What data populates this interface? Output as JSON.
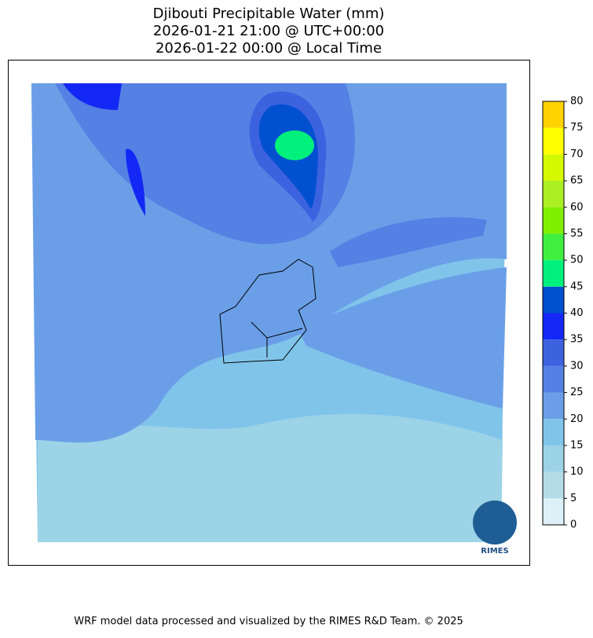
{
  "title": [
    "Djibouti Precipitable Water (mm)",
    "2026-01-21 21:00 @ UTC+00:00",
    "2026-01-22 00:00 @ Local Time"
  ],
  "colorbar": {
    "lim": [
      0,
      80
    ],
    "ticks": [
      0,
      5,
      10,
      15,
      20,
      25,
      30,
      35,
      40,
      45,
      50,
      55,
      60,
      65,
      70,
      75,
      80
    ],
    "colors": [
      "#dcf0f8",
      "#b4dce8",
      "#9dd3e7",
      "#80c4ea",
      "#6a9fe8",
      "#5580e4",
      "#3d62df",
      "#1428f5",
      "#0050d0",
      "#00f07c",
      "#40f040",
      "#80f000",
      "#aaf024",
      "#d4f800",
      "#ffff00",
      "#ffd200"
    ]
  },
  "logo_text": "RIMES",
  "footer": "WRF model data processed and visualized by the RIMES R&D Team. © 2025"
}
